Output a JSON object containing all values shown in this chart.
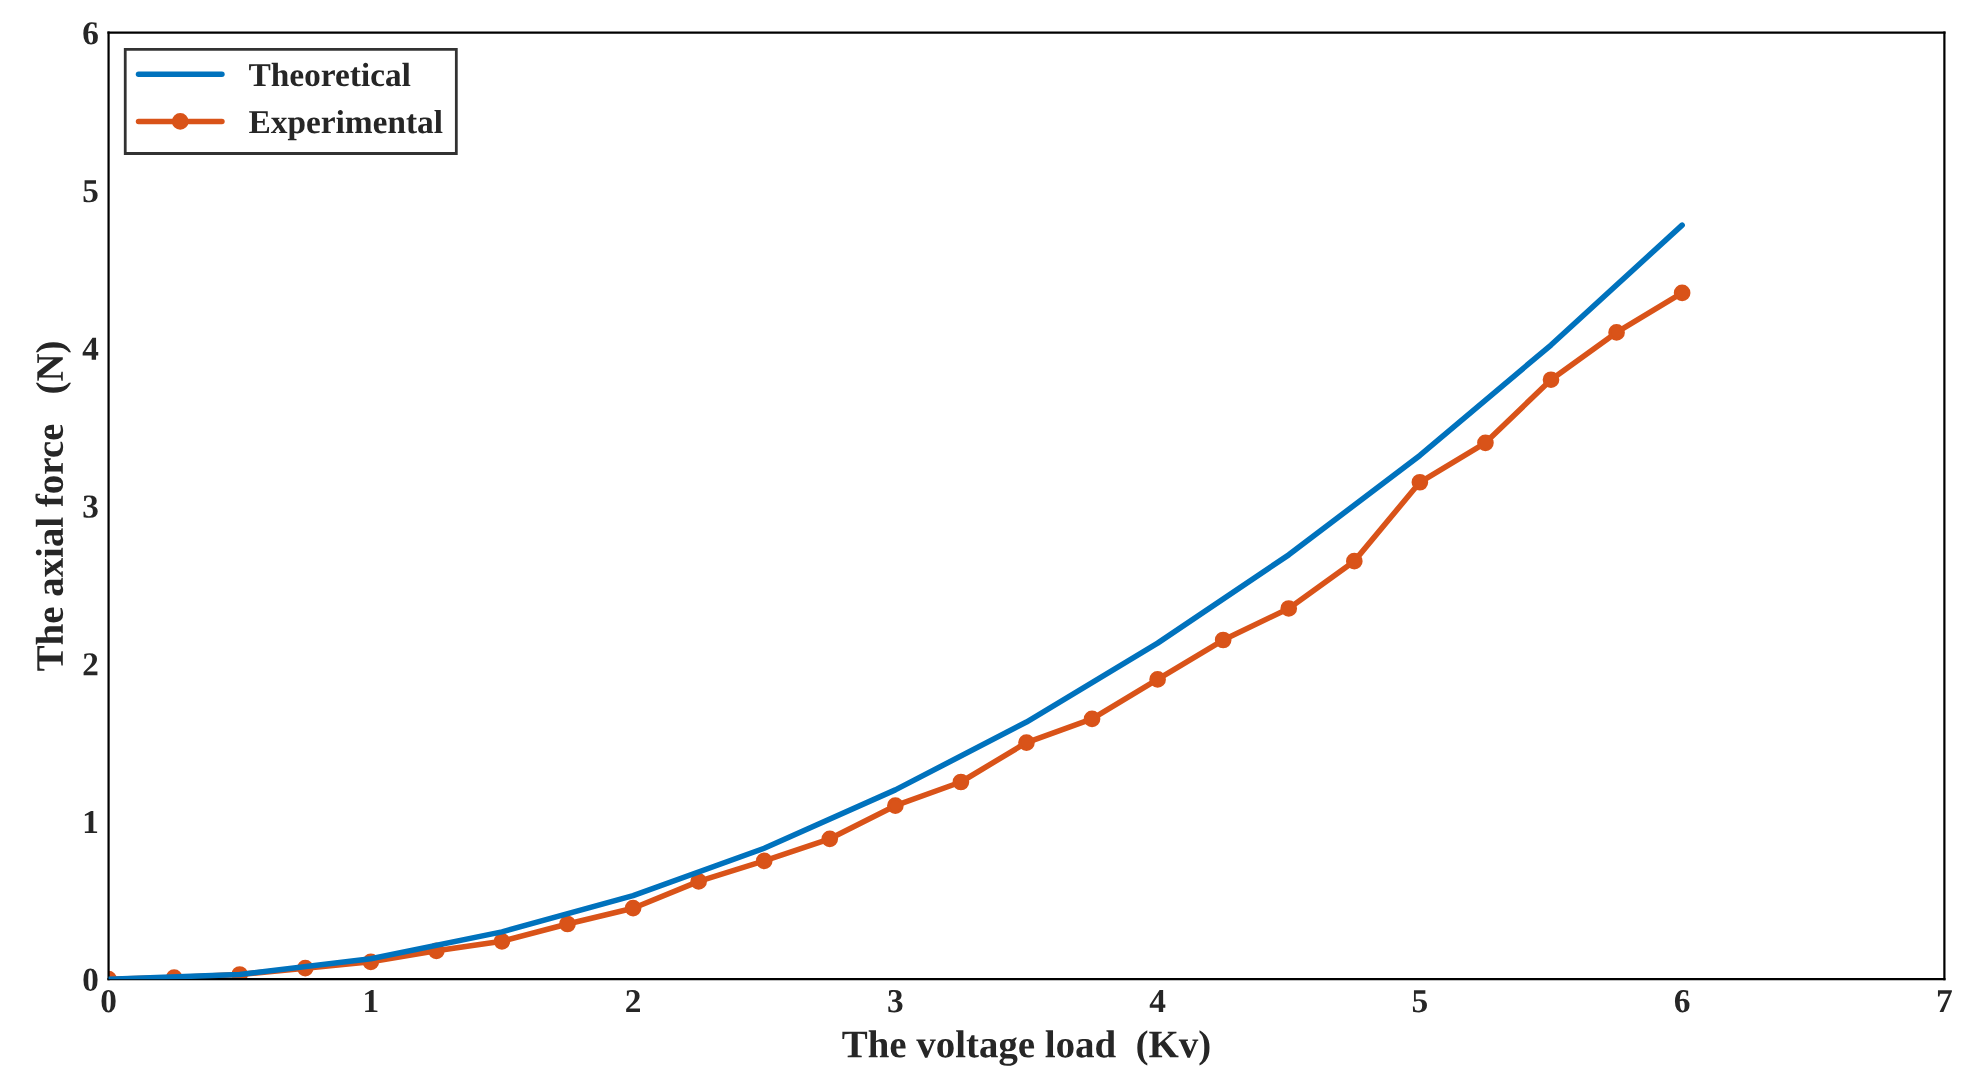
{
  "chart_data": {
    "type": "line",
    "xlabel": "The voltage load  (Kv)",
    "ylabel": "The axial force   (N)",
    "xlim": [
      0,
      7
    ],
    "ylim": [
      0,
      6
    ],
    "xticks": [
      0,
      1,
      2,
      3,
      4,
      5,
      6,
      7
    ],
    "yticks": [
      0,
      1,
      2,
      3,
      4,
      5,
      6
    ],
    "grid": false,
    "legend": "top left",
    "series": [
      {
        "name": "Theoretical",
        "color": "#0072bd",
        "marker": "none",
        "x": [
          0,
          0.5,
          1,
          1.5,
          2,
          2.5,
          3,
          3.5,
          4,
          4.5,
          5,
          5.5,
          6
        ],
        "values": [
          0,
          0.03,
          0.13,
          0.3,
          0.53,
          0.83,
          1.2,
          1.63,
          2.13,
          2.69,
          3.32,
          4.02,
          4.78
        ]
      },
      {
        "name": "Experimental",
        "color": "#d95319",
        "marker": "circle",
        "x": [
          0,
          0.25,
          0.5,
          0.75,
          1,
          1.25,
          1.5,
          1.75,
          2,
          2.25,
          2.5,
          2.75,
          3,
          3.25,
          3.5,
          3.75,
          4,
          4.25,
          4.5,
          4.75,
          5,
          5.25,
          5.5,
          5.75,
          6
        ],
        "values": [
          0,
          0.01,
          0.03,
          0.07,
          0.11,
          0.18,
          0.24,
          0.35,
          0.45,
          0.62,
          0.75,
          0.89,
          1.1,
          1.25,
          1.5,
          1.65,
          1.9,
          2.15,
          2.35,
          2.65,
          3.15,
          3.4,
          3.8,
          4.1,
          4.35
        ]
      }
    ]
  }
}
